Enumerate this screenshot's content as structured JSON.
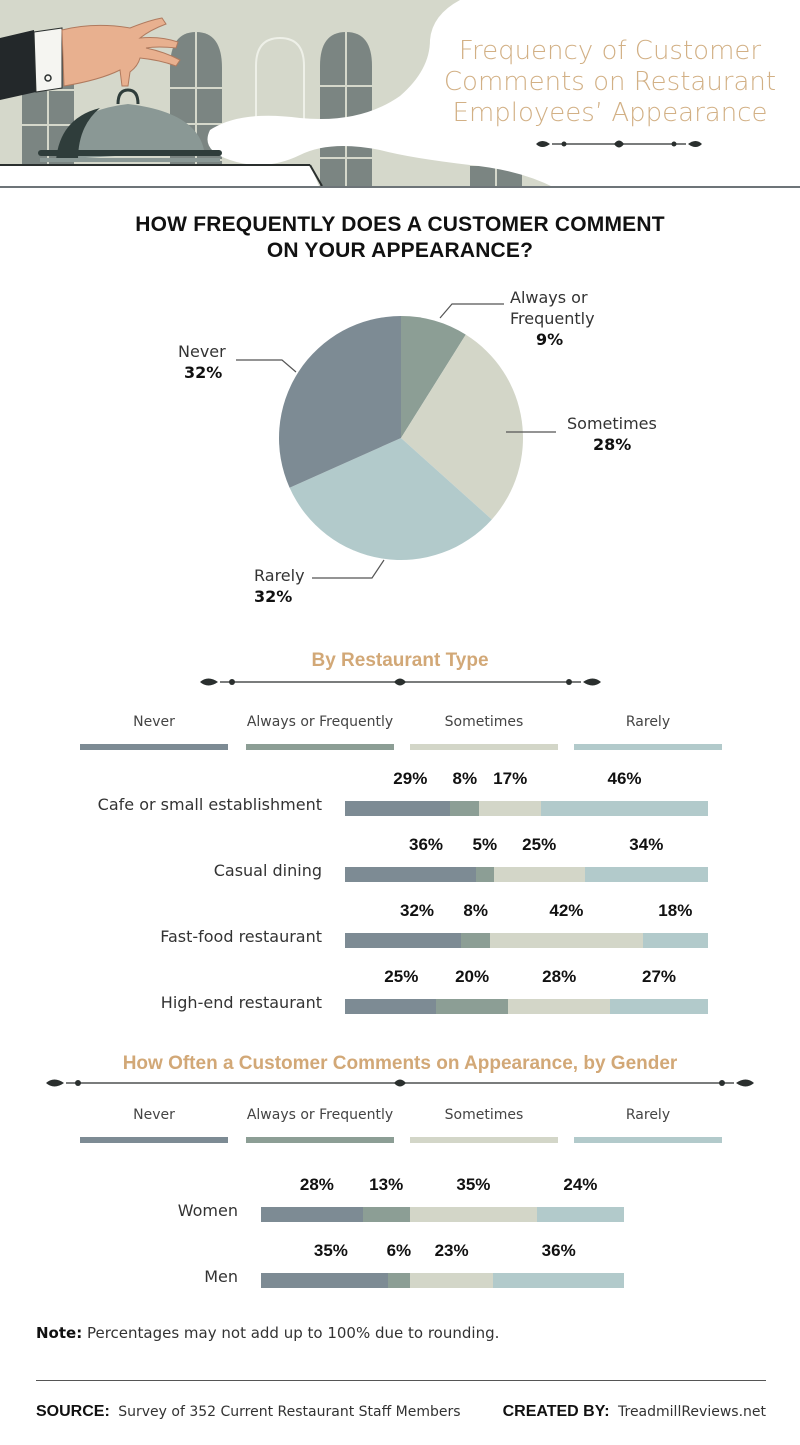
{
  "title_lines": [
    "Frequency of Customer",
    "Comments on Restaurant",
    "Employees’ Appearance"
  ],
  "colors": {
    "never": "#7d8b94",
    "always_or_frequently": "#8c9e95",
    "sometimes": "#d3d6c8",
    "rarely": "#b2cacb",
    "accent": "#d2a877"
  },
  "icons": [
    "serving-hand-illustration",
    "cloche-icon",
    "ornament-divider"
  ],
  "pie": {
    "question_lines": [
      "HOW FREQUENTLY DOES A CUSTOMER COMMENT",
      "ON YOUR APPEARANCE?"
    ],
    "labels": [
      {
        "lines": [
          "Always or",
          "Frequently"
        ],
        "pct": "9%"
      },
      {
        "lines": [
          "Sometimes"
        ],
        "pct": "28%"
      },
      {
        "lines": [
          "Rarely"
        ],
        "pct": "32%"
      },
      {
        "lines": [
          "Never"
        ],
        "pct": "32%"
      }
    ]
  },
  "restaurant": {
    "heading": "By Restaurant Type",
    "legend": [
      "Never",
      "Always or Frequently",
      "Sometimes",
      "Rarely"
    ],
    "rows": [
      {
        "label": "Cafe or small establishment",
        "pcts": [
          "29%",
          "8%",
          "17%",
          "46%"
        ]
      },
      {
        "label": "Casual dining",
        "pcts": [
          "36%",
          "5%",
          "25%",
          "34%"
        ]
      },
      {
        "label": "Fast-food restaurant",
        "pcts": [
          "32%",
          "8%",
          "42%",
          "18%"
        ]
      },
      {
        "label": "High-end restaurant",
        "pcts": [
          "25%",
          "20%",
          "28%",
          "27%"
        ]
      }
    ]
  },
  "gender": {
    "heading": "How Often a Customer Comments on Appearance, by Gender",
    "legend": [
      "Never",
      "Always or Frequently",
      "Sometimes",
      "Rarely"
    ],
    "rows": [
      {
        "label": "Women",
        "pcts": [
          "28%",
          "13%",
          "35%",
          "24%"
        ]
      },
      {
        "label": "Men",
        "pcts": [
          "35%",
          "6%",
          "23%",
          "36%"
        ]
      }
    ]
  },
  "chart_data": [
    {
      "type": "pie",
      "title": "HOW FREQUENTLY DOES A CUSTOMER COMMENT ON YOUR APPEARANCE?",
      "categories": [
        "Always or Frequently",
        "Sometimes",
        "Rarely",
        "Never"
      ],
      "values": [
        9,
        28,
        32,
        32
      ],
      "unit": "%"
    },
    {
      "type": "bar",
      "stacked": true,
      "orientation": "horizontal",
      "title": "By Restaurant Type",
      "categories": [
        "Cafe or small establishment",
        "Casual dining",
        "Fast-food restaurant",
        "High-end restaurant"
      ],
      "series": [
        {
          "name": "Never",
          "values": [
            29,
            36,
            32,
            25
          ]
        },
        {
          "name": "Always or Frequently",
          "values": [
            8,
            5,
            8,
            20
          ]
        },
        {
          "name": "Sometimes",
          "values": [
            17,
            25,
            42,
            28
          ]
        },
        {
          "name": "Rarely",
          "values": [
            46,
            34,
            18,
            27
          ]
        }
      ],
      "legend": "top"
    },
    {
      "type": "bar",
      "stacked": true,
      "orientation": "horizontal",
      "title": "How Often a Customer Comments on Appearance, by Gender",
      "categories": [
        "Women",
        "Men"
      ],
      "series": [
        {
          "name": "Never",
          "values": [
            28,
            35
          ]
        },
        {
          "name": "Always or Frequently",
          "values": [
            13,
            6
          ]
        },
        {
          "name": "Sometimes",
          "values": [
            35,
            23
          ]
        },
        {
          "name": "Rarely",
          "values": [
            24,
            36
          ]
        }
      ],
      "legend": "top"
    }
  ],
  "footer": {
    "note_key": "Note:",
    "note_text": " Percentages may not add up to 100% due to rounding.",
    "source_key": "SOURCE:",
    "source_text": "Survey of 352 Current Restaurant Staff Members",
    "created_key": "CREATED BY:",
    "created_text": "TreadmillReviews.net"
  }
}
